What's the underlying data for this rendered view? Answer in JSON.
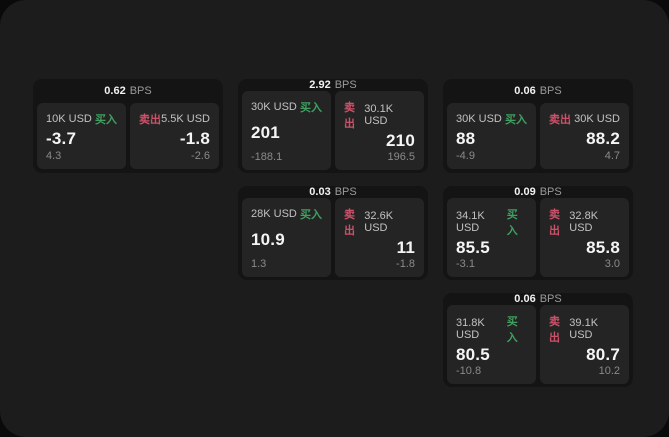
{
  "labels": {
    "bps_unit": "BPS",
    "buy": "买入",
    "sell": "卖出"
  },
  "colors": {
    "background": "#0a0a0a",
    "panel": "#1c1c1c",
    "card": "#141414",
    "subpanel": "#242424",
    "buy_green": "#3fa05f",
    "sell_red": "#cd5168"
  },
  "cards": [
    {
      "bps": "0.62",
      "buy": {
        "amount": "10K USD",
        "price": "-3.7",
        "change": "4.3"
      },
      "sell": {
        "amount": "5.5K USD",
        "price": "-1.8",
        "change": "-2.6"
      }
    },
    {
      "bps": "2.92",
      "buy": {
        "amount": "30K USD",
        "price": "201",
        "change": "-188.1"
      },
      "sell": {
        "amount": "30.1K USD",
        "price": "210",
        "change": "196.5"
      }
    },
    {
      "bps": "0.06",
      "buy": {
        "amount": "30K USD",
        "price": "88",
        "change": "-4.9"
      },
      "sell": {
        "amount": "30K USD",
        "price": "88.2",
        "change": "4.7"
      }
    },
    {
      "bps": "0.03",
      "buy": {
        "amount": "28K USD",
        "price": "10.9",
        "change": "1.3"
      },
      "sell": {
        "amount": "32.6K USD",
        "price": "11",
        "change": "-1.8"
      }
    },
    {
      "bps": "0.09",
      "buy": {
        "amount": "34.1K USD",
        "price": "85.5",
        "change": "-3.1"
      },
      "sell": {
        "amount": "32.8K USD",
        "price": "85.8",
        "change": "3.0"
      }
    },
    {
      "bps": "0.06",
      "buy": {
        "amount": "31.8K USD",
        "price": "80.5",
        "change": "-10.8"
      },
      "sell": {
        "amount": "39.1K USD",
        "price": "80.7",
        "change": "10.2"
      }
    }
  ]
}
